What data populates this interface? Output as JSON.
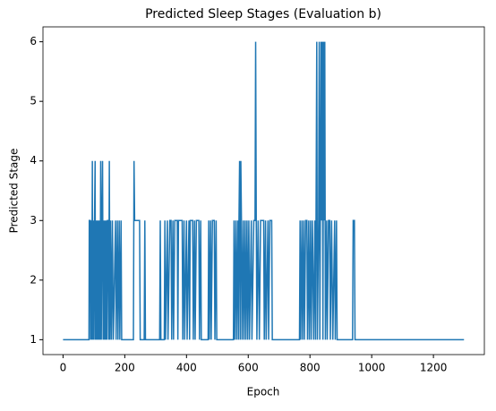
{
  "chart_data": {
    "type": "line",
    "title": "Predicted Sleep Stages (Evaluation b)",
    "x_label": "Epoch",
    "y_label": "Predicted Stage",
    "xlim": [
      -65,
      1365
    ],
    "ylim": [
      0.75,
      6.25
    ],
    "xticks": [
      0,
      200,
      400,
      600,
      800,
      1000,
      1200
    ],
    "yticks": [
      1,
      2,
      3,
      4,
      5,
      6
    ],
    "series": [
      {
        "color": "#1f77b4",
        "x": [
          0,
          84,
          85,
          88,
          89,
          90,
          93,
          95,
          96,
          98,
          100,
          102,
          104,
          105,
          107,
          109,
          110,
          112,
          114,
          116,
          118,
          120,
          122,
          124,
          126,
          128,
          130,
          132,
          134,
          136,
          138,
          140,
          142,
          144,
          146,
          148,
          150,
          152,
          154,
          157,
          160,
          163,
          170,
          172,
          176,
          178,
          182,
          184,
          188,
          190,
          228,
          230,
          232,
          248,
          250,
          263,
          265,
          267,
          313,
          315,
          317,
          328,
          330,
          332,
          338,
          340,
          346,
          350,
          352,
          356,
          358,
          362,
          370,
          372,
          374,
          386,
          388,
          392,
          394,
          400,
          402,
          408,
          410,
          412,
          420,
          422,
          426,
          428,
          432,
          440,
          442,
          446,
          448,
          470,
          472,
          474,
          478,
          480,
          484,
          490,
          492,
          496,
          498,
          552,
          554,
          556,
          560,
          562,
          566,
          568,
          570,
          572,
          574,
          576,
          578,
          580,
          584,
          586,
          590,
          592,
          596,
          598,
          602,
          604,
          610,
          612,
          618,
          622,
          624,
          626,
          628,
          632,
          636,
          640,
          650,
          652,
          656,
          658,
          664,
          666,
          670,
          676,
          678,
          766,
          768,
          770,
          774,
          776,
          780,
          782,
          786,
          790,
          792,
          796,
          798,
          802,
          804,
          808,
          812,
          816,
          818,
          822,
          824,
          828,
          830,
          832,
          836,
          838,
          840,
          842,
          844,
          846,
          848,
          850,
          854,
          856,
          860,
          864,
          866,
          870,
          874,
          880,
          882,
          886,
          888,
          938,
          940,
          944,
          946,
          1299
        ],
        "values": [
          1,
          1,
          3,
          3,
          1,
          3,
          1,
          4,
          1,
          3,
          1,
          3,
          4,
          1,
          3,
          1,
          3,
          1,
          3,
          1,
          3,
          1,
          4,
          1,
          3,
          4,
          1,
          3,
          1,
          3,
          1,
          3,
          1,
          3,
          3,
          1,
          4,
          1,
          3,
          1,
          3,
          1,
          3,
          1,
          3,
          1,
          3,
          1,
          3,
          1,
          1,
          4,
          3,
          3,
          1,
          1,
          3,
          1,
          1,
          3,
          1,
          1,
          3,
          1,
          3,
          1,
          3,
          3,
          1,
          3,
          1,
          3,
          3,
          1,
          3,
          3,
          1,
          3,
          1,
          3,
          1,
          3,
          1,
          3,
          3,
          1,
          3,
          1,
          3,
          3,
          1,
          3,
          1,
          1,
          3,
          1,
          3,
          1,
          3,
          3,
          1,
          3,
          1,
          1,
          3,
          1,
          3,
          1,
          3,
          1,
          3,
          4,
          1,
          4,
          3,
          1,
          3,
          1,
          3,
          1,
          3,
          1,
          3,
          1,
          3,
          1,
          3,
          3,
          6,
          3,
          1,
          3,
          1,
          3,
          3,
          1,
          3,
          1,
          3,
          1,
          3,
          3,
          1,
          1,
          3,
          1,
          3,
          1,
          3,
          1,
          3,
          3,
          1,
          3,
          1,
          3,
          1,
          3,
          1,
          3,
          1,
          6,
          1,
          3,
          6,
          1,
          6,
          3,
          6,
          1,
          6,
          3,
          6,
          1,
          3,
          1,
          3,
          3,
          1,
          3,
          1,
          3,
          1,
          3,
          1,
          1,
          3,
          3,
          1,
          1
        ]
      }
    ]
  }
}
